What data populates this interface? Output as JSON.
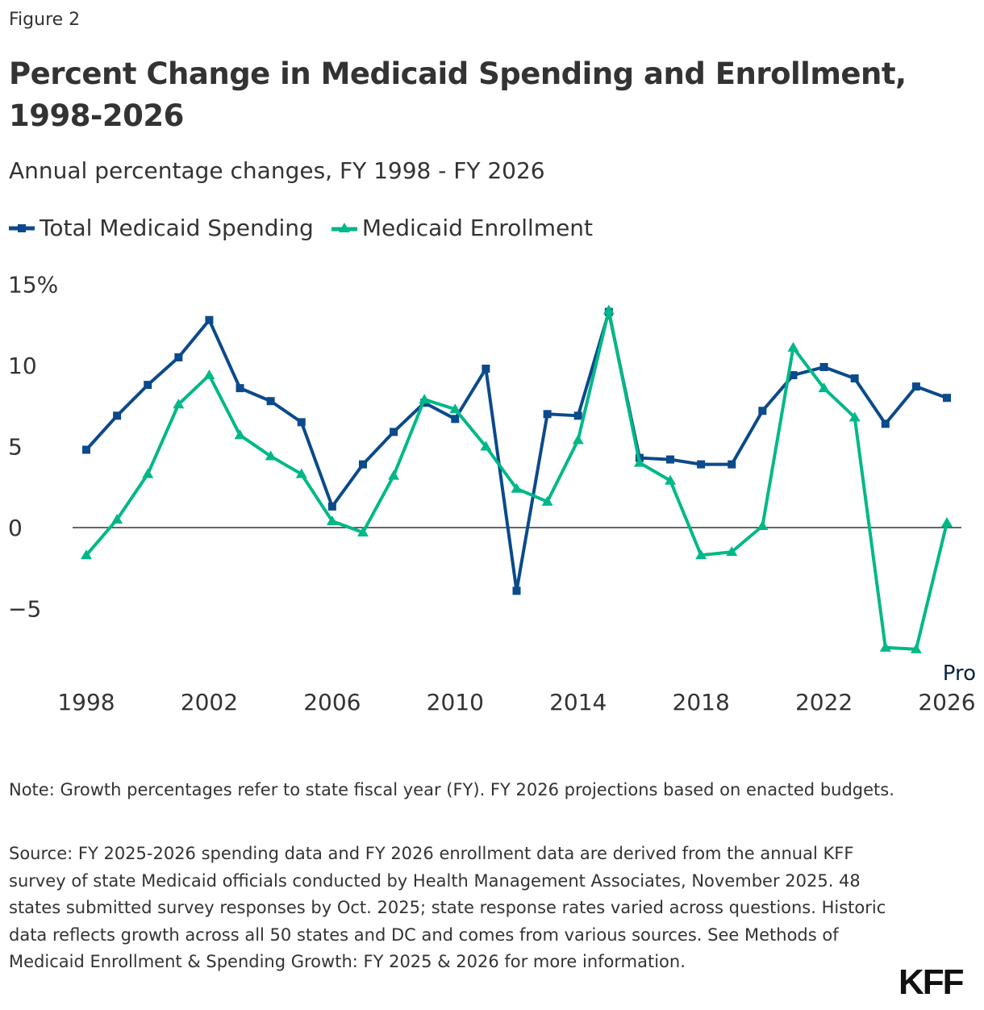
{
  "figure_label": "Figure 2",
  "logo": "KFF",
  "chart_data": {
    "type": "line",
    "title": "Percent Change in Medicaid Spending and Enrollment, 1998-2026",
    "subtitle": "Annual percentage changes, FY 1998 - FY 2026",
    "x": [
      1998,
      1999,
      2000,
      2001,
      2002,
      2003,
      2004,
      2005,
      2006,
      2007,
      2008,
      2009,
      2010,
      2011,
      2012,
      2013,
      2014,
      2015,
      2016,
      2017,
      2018,
      2019,
      2020,
      2021,
      2022,
      2023,
      2024,
      2025,
      2026
    ],
    "x_tick_labels": [
      "1998",
      "2002",
      "2006",
      "2010",
      "2014",
      "2018",
      "2022",
      "2026"
    ],
    "y_tick_labels": [
      "15%",
      "10",
      "5",
      "0",
      "−5"
    ],
    "y_ticks": [
      15,
      10,
      5,
      0,
      -5
    ],
    "ylim": [
      -8.5,
      15
    ],
    "grid": false,
    "zero_line": true,
    "legend_position": "top-left",
    "annotation": "Pro",
    "series": [
      {
        "name": "Total Medicaid Spending",
        "color": "#0b4a8b",
        "marker": "square",
        "values": [
          4.8,
          6.9,
          8.8,
          10.5,
          12.8,
          8.6,
          7.8,
          6.5,
          1.3,
          3.9,
          5.9,
          7.7,
          6.7,
          9.8,
          -3.9,
          7.0,
          6.9,
          13.3,
          4.3,
          4.2,
          3.9,
          3.9,
          7.2,
          9.4,
          9.9,
          9.2,
          6.4,
          8.7,
          8.0
        ]
      },
      {
        "name": "Medicaid Enrollment",
        "color": "#00b887",
        "marker": "triangle",
        "values": [
          -1.7,
          0.5,
          3.3,
          7.6,
          9.4,
          5.7,
          4.4,
          3.3,
          0.4,
          -0.3,
          3.2,
          7.9,
          7.3,
          5.0,
          2.4,
          1.6,
          5.4,
          13.4,
          4.0,
          2.9,
          -1.7,
          -1.5,
          0.1,
          11.1,
          8.6,
          6.8,
          -7.4,
          -7.5,
          0.3
        ]
      }
    ]
  },
  "note": "Note: Growth percentages refer to state fiscal year (FY). FY 2026 projections based on enacted budgets.",
  "source": "Source: FY 2025-2026 spending data and FY 2026 enrollment data are derived from the annual KFF survey of state Medicaid officials conducted by Health Management Associates, November 2025. 48 states submitted survey responses by Oct. 2025; state response rates varied across questions. Historic data reflects growth across all 50 states and DC and comes from various sources. See Methods of Medicaid Enrollment & Spending Growth: FY 2025 & 2026 for more information."
}
